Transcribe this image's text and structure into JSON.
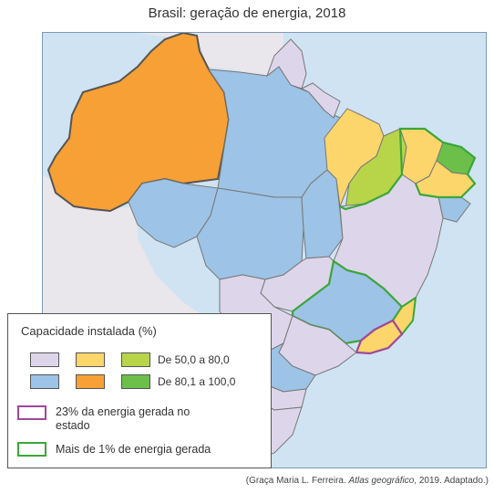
{
  "title": "Brasil: geração de energia, 2018",
  "legend": {
    "title": "Capacidade instalada (%)",
    "range_1": "De 50,0 a 80,0",
    "range_2": "De 80,1 a 100,0",
    "marker_share": "23% da energia gerada no estado",
    "marker_share_line1": "23% da energia gerada no",
    "marker_share_line2": "estado",
    "marker_over1": "Mais de 1% de energia gerada"
  },
  "colors": {
    "hydro_high": "#f7a035",
    "hydro_mid": "#fcd56b",
    "thermal_high": "#9dc3e6",
    "thermal_mid": "#ddd6ea",
    "wind_high": "#6cc04a",
    "wind_mid": "#b8d54a",
    "ocean": "#cfe3f2",
    "neighbors": "#e9e6ec",
    "marker_share": "#a0479a",
    "marker_over1": "#3aa63a"
  },
  "source": {
    "prefix": "(Graça Maria L. Ferreira. ",
    "work": "Atlas geográfico",
    "suffix": ", 2019. Adaptado.)"
  }
}
